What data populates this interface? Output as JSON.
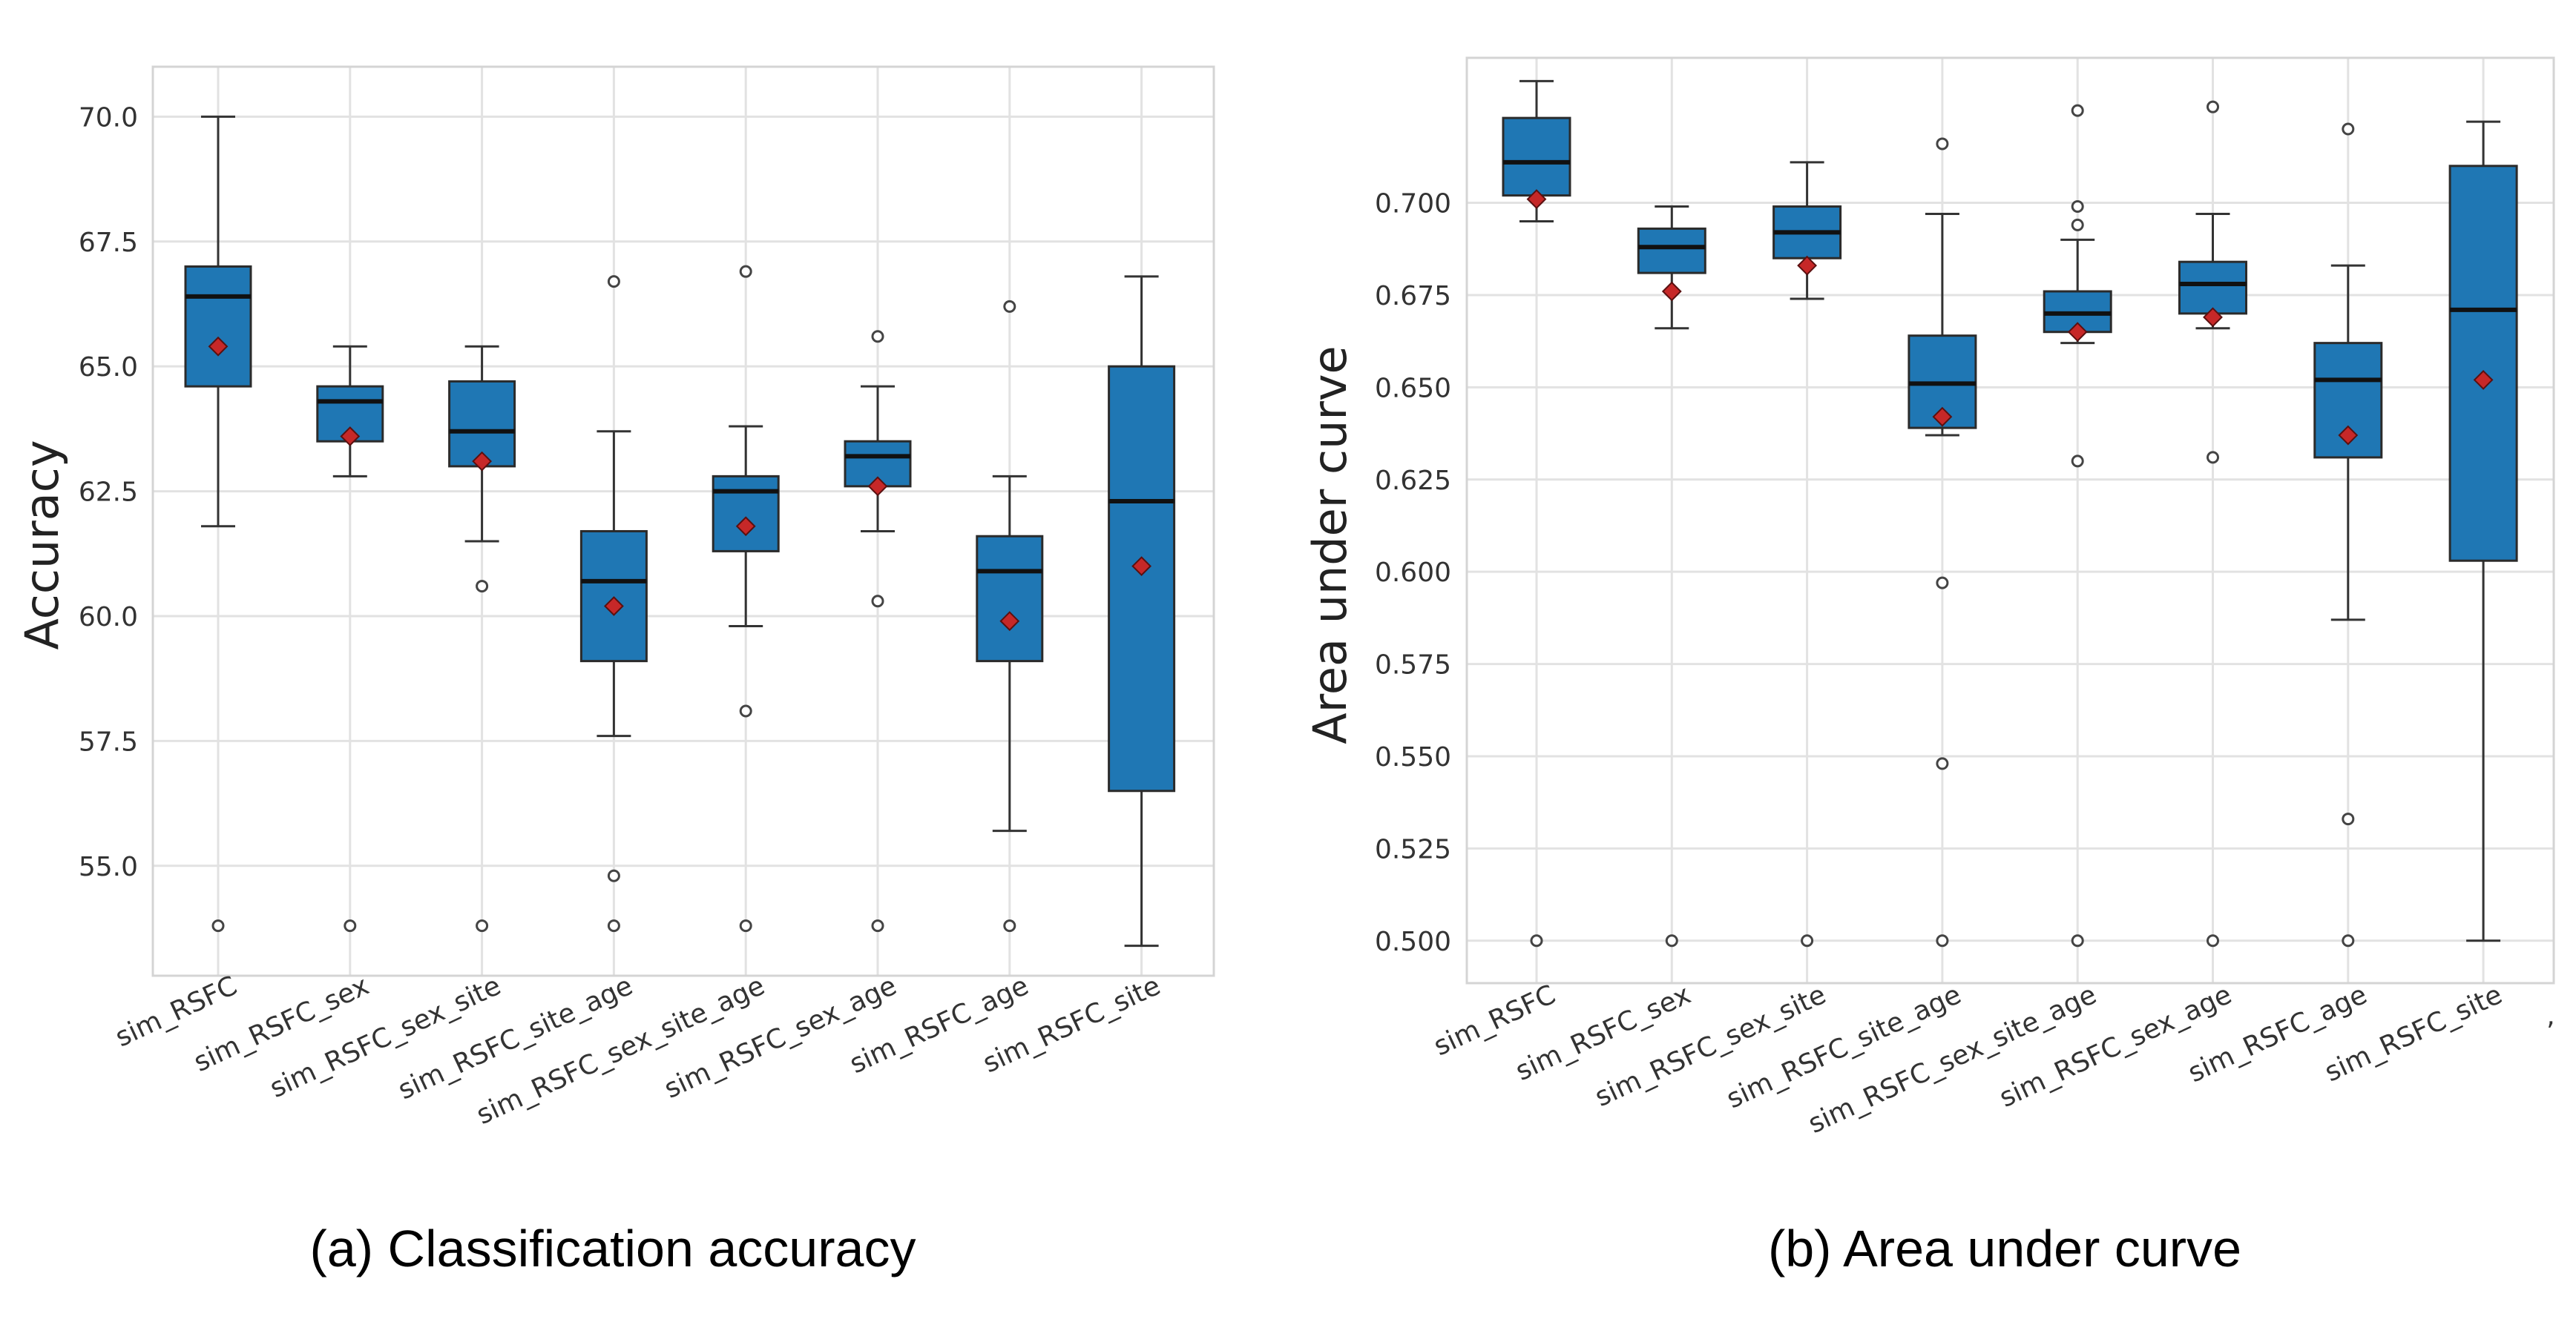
{
  "chart_data": [
    {
      "type": "box",
      "title": "",
      "caption": "(a) Classification accuracy",
      "xlabel": "",
      "ylabel": "Accuracy",
      "ylim": [
        52.8,
        71.0
      ],
      "yticks": [
        55.0,
        57.5,
        60.0,
        62.5,
        65.0,
        67.5,
        70.0
      ],
      "ytick_labels": [
        "55.0",
        "57.5",
        "60.0",
        "62.5",
        "65.0",
        "67.5",
        "70.0"
      ],
      "grid": true,
      "categories": [
        "sim_RSFC",
        "sim_RSFC_sex",
        "sim_RSFC_sex_site",
        "sim_RSFC_site_age",
        "sim_RSFC_sex_site_age",
        "sim_RSFC_sex_age",
        "sim_RSFC_age",
        "sim_RSFC_site"
      ],
      "boxes": [
        {
          "whislo": 61.8,
          "q1": 64.6,
          "median": 66.4,
          "q3": 67.0,
          "whishi": 70.0,
          "mean": 65.4,
          "fliers": [
            53.8
          ]
        },
        {
          "whislo": 62.8,
          "q1": 63.5,
          "median": 64.3,
          "q3": 64.6,
          "whishi": 65.4,
          "mean": 63.6,
          "fliers": [
            53.8
          ]
        },
        {
          "whislo": 61.5,
          "q1": 63.0,
          "median": 63.7,
          "q3": 64.7,
          "whishi": 65.4,
          "mean": 63.1,
          "fliers": [
            60.6,
            53.8
          ]
        },
        {
          "whislo": 57.6,
          "q1": 59.1,
          "median": 60.7,
          "q3": 61.7,
          "whishi": 63.7,
          "mean": 60.2,
          "fliers": [
            66.7,
            54.8,
            53.8
          ]
        },
        {
          "whislo": 59.8,
          "q1": 61.3,
          "median": 62.5,
          "q3": 62.8,
          "whishi": 63.8,
          "mean": 61.8,
          "fliers": [
            66.9,
            58.1,
            53.8
          ]
        },
        {
          "whislo": 61.7,
          "q1": 62.6,
          "median": 63.2,
          "q3": 63.5,
          "whishi": 64.6,
          "mean": 62.6,
          "fliers": [
            65.6,
            60.3,
            53.8
          ]
        },
        {
          "whislo": 55.7,
          "q1": 59.1,
          "median": 60.9,
          "q3": 61.6,
          "whishi": 62.8,
          "mean": 59.9,
          "fliers": [
            66.2,
            53.8
          ]
        },
        {
          "whislo": 53.4,
          "q1": 56.5,
          "median": 62.3,
          "q3": 65.0,
          "whishi": 66.8,
          "mean": 61.0,
          "fliers": []
        }
      ]
    },
    {
      "type": "box",
      "title": "",
      "caption": "(b) Area under curve",
      "xlabel": "",
      "ylabel": "Area under curve",
      "ylim": [
        0.4885,
        0.7393
      ],
      "yticks": [
        0.5,
        0.525,
        0.55,
        0.575,
        0.6,
        0.625,
        0.65,
        0.675,
        0.7
      ],
      "ytick_labels": [
        "0.500",
        "0.525",
        "0.550",
        "0.575",
        "0.600",
        "0.625",
        "0.650",
        "0.675",
        "0.700"
      ],
      "grid": true,
      "categories": [
        "sim_RSFC",
        "sim_RSFC_sex",
        "sim_RSFC_sex_site",
        "sim_RSFC_site_age",
        "sim_RSFC_sex_site_age",
        "sim_RSFC_sex_age",
        "sim_RSFC_age",
        "sim_RSFC_site"
      ],
      "stray_mark": ",",
      "boxes": [
        {
          "whislo": 0.695,
          "q1": 0.702,
          "median": 0.711,
          "q3": 0.723,
          "whishi": 0.733,
          "mean": 0.701,
          "fliers": [
            0.5
          ]
        },
        {
          "whislo": 0.666,
          "q1": 0.681,
          "median": 0.688,
          "q3": 0.693,
          "whishi": 0.699,
          "mean": 0.676,
          "fliers": [
            0.5
          ]
        },
        {
          "whislo": 0.674,
          "q1": 0.685,
          "median": 0.692,
          "q3": 0.699,
          "whishi": 0.711,
          "mean": 0.683,
          "fliers": [
            0.5
          ]
        },
        {
          "whislo": 0.637,
          "q1": 0.639,
          "median": 0.651,
          "q3": 0.664,
          "whishi": 0.697,
          "mean": 0.642,
          "fliers": [
            0.716,
            0.597,
            0.548,
            0.5
          ]
        },
        {
          "whislo": 0.662,
          "q1": 0.665,
          "median": 0.67,
          "q3": 0.676,
          "whishi": 0.69,
          "mean": 0.665,
          "fliers": [
            0.725,
            0.699,
            0.694,
            0.63,
            0.5
          ]
        },
        {
          "whislo": 0.666,
          "q1": 0.67,
          "median": 0.678,
          "q3": 0.684,
          "whishi": 0.697,
          "mean": 0.669,
          "fliers": [
            0.726,
            0.631,
            0.5
          ]
        },
        {
          "whislo": 0.587,
          "q1": 0.631,
          "median": 0.652,
          "q3": 0.662,
          "whishi": 0.683,
          "mean": 0.637,
          "fliers": [
            0.72,
            0.533,
            0.5
          ]
        },
        {
          "whislo": 0.5,
          "q1": 0.603,
          "median": 0.671,
          "q3": 0.71,
          "whishi": 0.722,
          "mean": 0.652,
          "fliers": []
        }
      ]
    }
  ],
  "colors": {
    "box": "#1f77b4",
    "mean": "#c62828",
    "grid": "#e2e2e2"
  }
}
